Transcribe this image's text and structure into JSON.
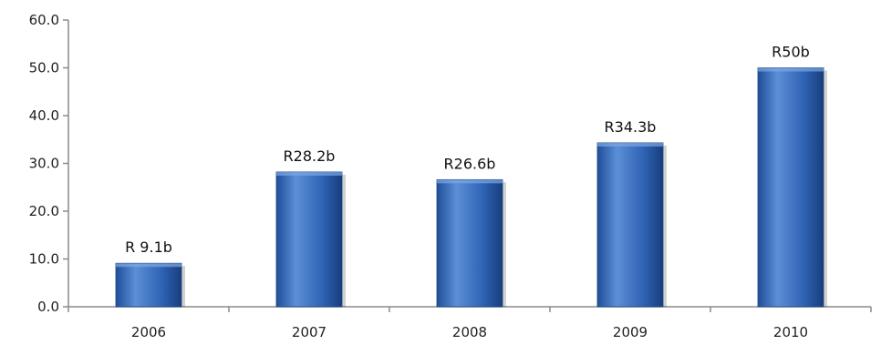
{
  "chart_data": {
    "type": "bar",
    "title": "",
    "xlabel": "",
    "ylabel": "",
    "categories": [
      "2006",
      "2007",
      "2008",
      "2009",
      "2010"
    ],
    "values": [
      9.1,
      28.2,
      26.6,
      34.3,
      50.0
    ],
    "data_labels": [
      "R 9.1b",
      "R28.2b",
      "R26.6b",
      "R34.3b",
      "R50b"
    ],
    "ylim": [
      0,
      60
    ],
    "yticks": [
      "0.0",
      "10.0",
      "20.0",
      "30.0",
      "40.0",
      "50.0",
      "60.0"
    ],
    "grid": false,
    "legend": "none",
    "colors": {
      "bar_light": "#5b8fd6",
      "bar_mid": "#2f63b4",
      "bar_dark": "#1f4f99"
    }
  }
}
